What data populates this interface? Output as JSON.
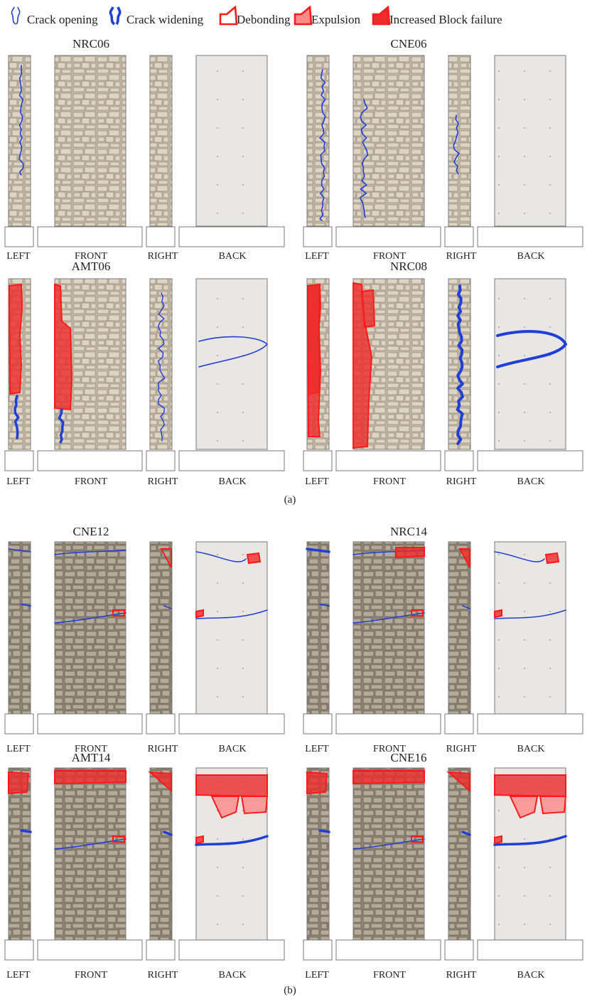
{
  "legend": [
    {
      "key": "crack-opening",
      "label": "Crack opening"
    },
    {
      "key": "crack-widening",
      "label": "Crack widening"
    },
    {
      "key": "debonding",
      "label": "Debonding"
    },
    {
      "key": "expulsion",
      "label": "Expulsion"
    },
    {
      "key": "block-failure",
      "label": "Increased Block failure"
    }
  ],
  "colors": {
    "crack": "#1f3fd6",
    "damage_stroke": "#ff1a1a",
    "expulsion_fill": "#ff8a8a",
    "block_fill": "#ee2a2a",
    "stone_base": "#b7ab98",
    "plaster": "#e8e6e3"
  },
  "face_labels": [
    "LEFT",
    "FRONT",
    "RIGHT",
    "BACK"
  ],
  "part_a": {
    "caption": "(a)",
    "specimens": [
      "NRC06",
      "CNE06",
      "AMT06",
      "NRC08"
    ]
  },
  "part_b": {
    "caption": "(b)",
    "specimens": [
      "CNE12",
      "NRC14",
      "AMT14",
      "CNE16"
    ]
  }
}
